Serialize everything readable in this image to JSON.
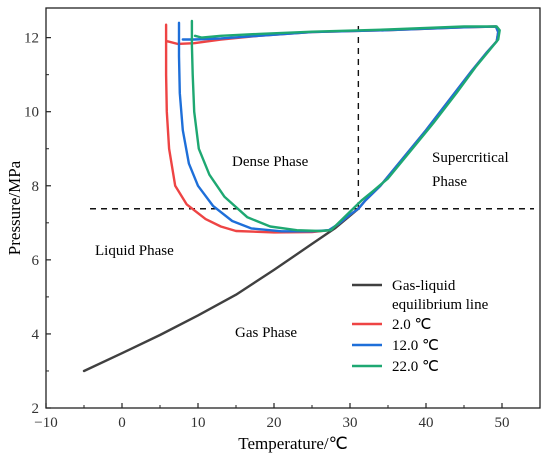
{
  "chart_data": {
    "type": "line",
    "title": "",
    "xlabel": "Temperature/℃",
    "ylabel": "Pressure/MPa",
    "xlim": [
      -10,
      55
    ],
    "ylim": [
      2,
      12.8
    ],
    "xticks": [
      -10,
      0,
      10,
      20,
      30,
      40,
      50
    ],
    "yticks": [
      2,
      4,
      6,
      8,
      10,
      12
    ],
    "xtick_labels": [
      "−10",
      "0",
      "10",
      "20",
      "30",
      "40",
      "50"
    ],
    "ytick_labels": [
      "2",
      "4",
      "6",
      "8",
      "10",
      "12"
    ],
    "grid": false,
    "legend_position": "bottom-right",
    "reference_lines": [
      {
        "orientation": "vertical",
        "x": 31.1,
        "style": "dashed"
      },
      {
        "orientation": "horizontal",
        "y": 7.38,
        "style": "dashed"
      }
    ],
    "annotations": [
      {
        "text": "Dense Phase",
        "x": 18,
        "y": 8.8
      },
      {
        "text": "Supercritical",
        "x": 43,
        "y": 9.0
      },
      {
        "text": "Phase",
        "x": 43,
        "y": 8.3
      },
      {
        "text": "Liquid Phase",
        "x": -2.5,
        "y": 6.3
      },
      {
        "text": "Gas Phase",
        "x": 17.5,
        "y": 4.0
      }
    ],
    "series": [
      {
        "name": "Gas-liquid equilibrium line",
        "legend_lines": [
          "Gas-liquid",
          "equilibrium line"
        ],
        "color": "#404040",
        "points": [
          [
            -5,
            3.0
          ],
          [
            0,
            3.48
          ],
          [
            5,
            3.97
          ],
          [
            10,
            4.5
          ],
          [
            15,
            5.06
          ],
          [
            20,
            5.73
          ],
          [
            25,
            6.43
          ],
          [
            28,
            6.85
          ],
          [
            31.1,
            7.38
          ]
        ]
      },
      {
        "name": "2.0 ℃",
        "color": "#ee4444",
        "points": [
          [
            5.8,
            12.35
          ],
          [
            5.8,
            11.0
          ],
          [
            5.9,
            10.0
          ],
          [
            6.2,
            9.0
          ],
          [
            7.0,
            8.0
          ],
          [
            8.5,
            7.5
          ],
          [
            11,
            7.1
          ],
          [
            13,
            6.9
          ],
          [
            15,
            6.78
          ],
          [
            20,
            6.74
          ],
          [
            25,
            6.75
          ],
          [
            27.3,
            6.8
          ],
          [
            28.5,
            6.97
          ],
          [
            30,
            7.22
          ],
          [
            31.1,
            7.38
          ],
          [
            32,
            7.6
          ],
          [
            34,
            8.0
          ],
          [
            37,
            8.75
          ],
          [
            40,
            9.5
          ],
          [
            43,
            10.3
          ],
          [
            46,
            11.1
          ],
          [
            48,
            11.6
          ],
          [
            49.3,
            11.9
          ],
          [
            49.5,
            12.15
          ],
          [
            49.2,
            12.3
          ],
          [
            45,
            12.28
          ],
          [
            35,
            12.2
          ],
          [
            25,
            12.15
          ],
          [
            18,
            12.05
          ],
          [
            13,
            11.95
          ],
          [
            9.5,
            11.85
          ],
          [
            7.3,
            11.83
          ],
          [
            6.0,
            11.9
          ]
        ]
      },
      {
        "name": "12.0 ℃",
        "color": "#1e6fd9",
        "points": [
          [
            7.5,
            12.4
          ],
          [
            7.5,
            11.5
          ],
          [
            7.6,
            10.5
          ],
          [
            8.0,
            9.5
          ],
          [
            8.8,
            8.6
          ],
          [
            10,
            8.0
          ],
          [
            12,
            7.45
          ],
          [
            14.5,
            7.05
          ],
          [
            17,
            6.85
          ],
          [
            21,
            6.77
          ],
          [
            25,
            6.77
          ],
          [
            27.2,
            6.8
          ],
          [
            28.5,
            6.97
          ],
          [
            30,
            7.22
          ],
          [
            31.1,
            7.38
          ],
          [
            32,
            7.6
          ],
          [
            34,
            8.0
          ],
          [
            37,
            8.75
          ],
          [
            40,
            9.5
          ],
          [
            43,
            10.3
          ],
          [
            46,
            11.1
          ],
          [
            48,
            11.6
          ],
          [
            49.3,
            11.9
          ],
          [
            49.5,
            12.15
          ],
          [
            49.2,
            12.3
          ],
          [
            45,
            12.28
          ],
          [
            35,
            12.2
          ],
          [
            25,
            12.15
          ],
          [
            18,
            12.05
          ],
          [
            13,
            11.98
          ],
          [
            9.5,
            11.95
          ],
          [
            8.0,
            11.95
          ]
        ]
      },
      {
        "name": "22.0 ℃",
        "color": "#1ea872",
        "points": [
          [
            9.2,
            12.45
          ],
          [
            9.2,
            11.8
          ],
          [
            9.3,
            11.0
          ],
          [
            9.5,
            10.0
          ],
          [
            10.1,
            9.0
          ],
          [
            11.5,
            8.3
          ],
          [
            13.5,
            7.7
          ],
          [
            16.5,
            7.15
          ],
          [
            19.5,
            6.9
          ],
          [
            23,
            6.8
          ],
          [
            26,
            6.78
          ],
          [
            27.5,
            6.8
          ],
          [
            29,
            7.1
          ],
          [
            30.5,
            7.4
          ],
          [
            31.5,
            7.6
          ],
          [
            33,
            7.85
          ],
          [
            35,
            8.2
          ],
          [
            38,
            8.95
          ],
          [
            41,
            9.7
          ],
          [
            44,
            10.5
          ],
          [
            46.5,
            11.2
          ],
          [
            48.3,
            11.65
          ],
          [
            49.5,
            11.95
          ],
          [
            49.7,
            12.2
          ],
          [
            49.3,
            12.3
          ],
          [
            45,
            12.3
          ],
          [
            35,
            12.22
          ],
          [
            25,
            12.16
          ],
          [
            18,
            12.1
          ],
          [
            13,
            12.05
          ],
          [
            10.5,
            12.0
          ],
          [
            9.6,
            12.05
          ]
        ]
      }
    ]
  }
}
